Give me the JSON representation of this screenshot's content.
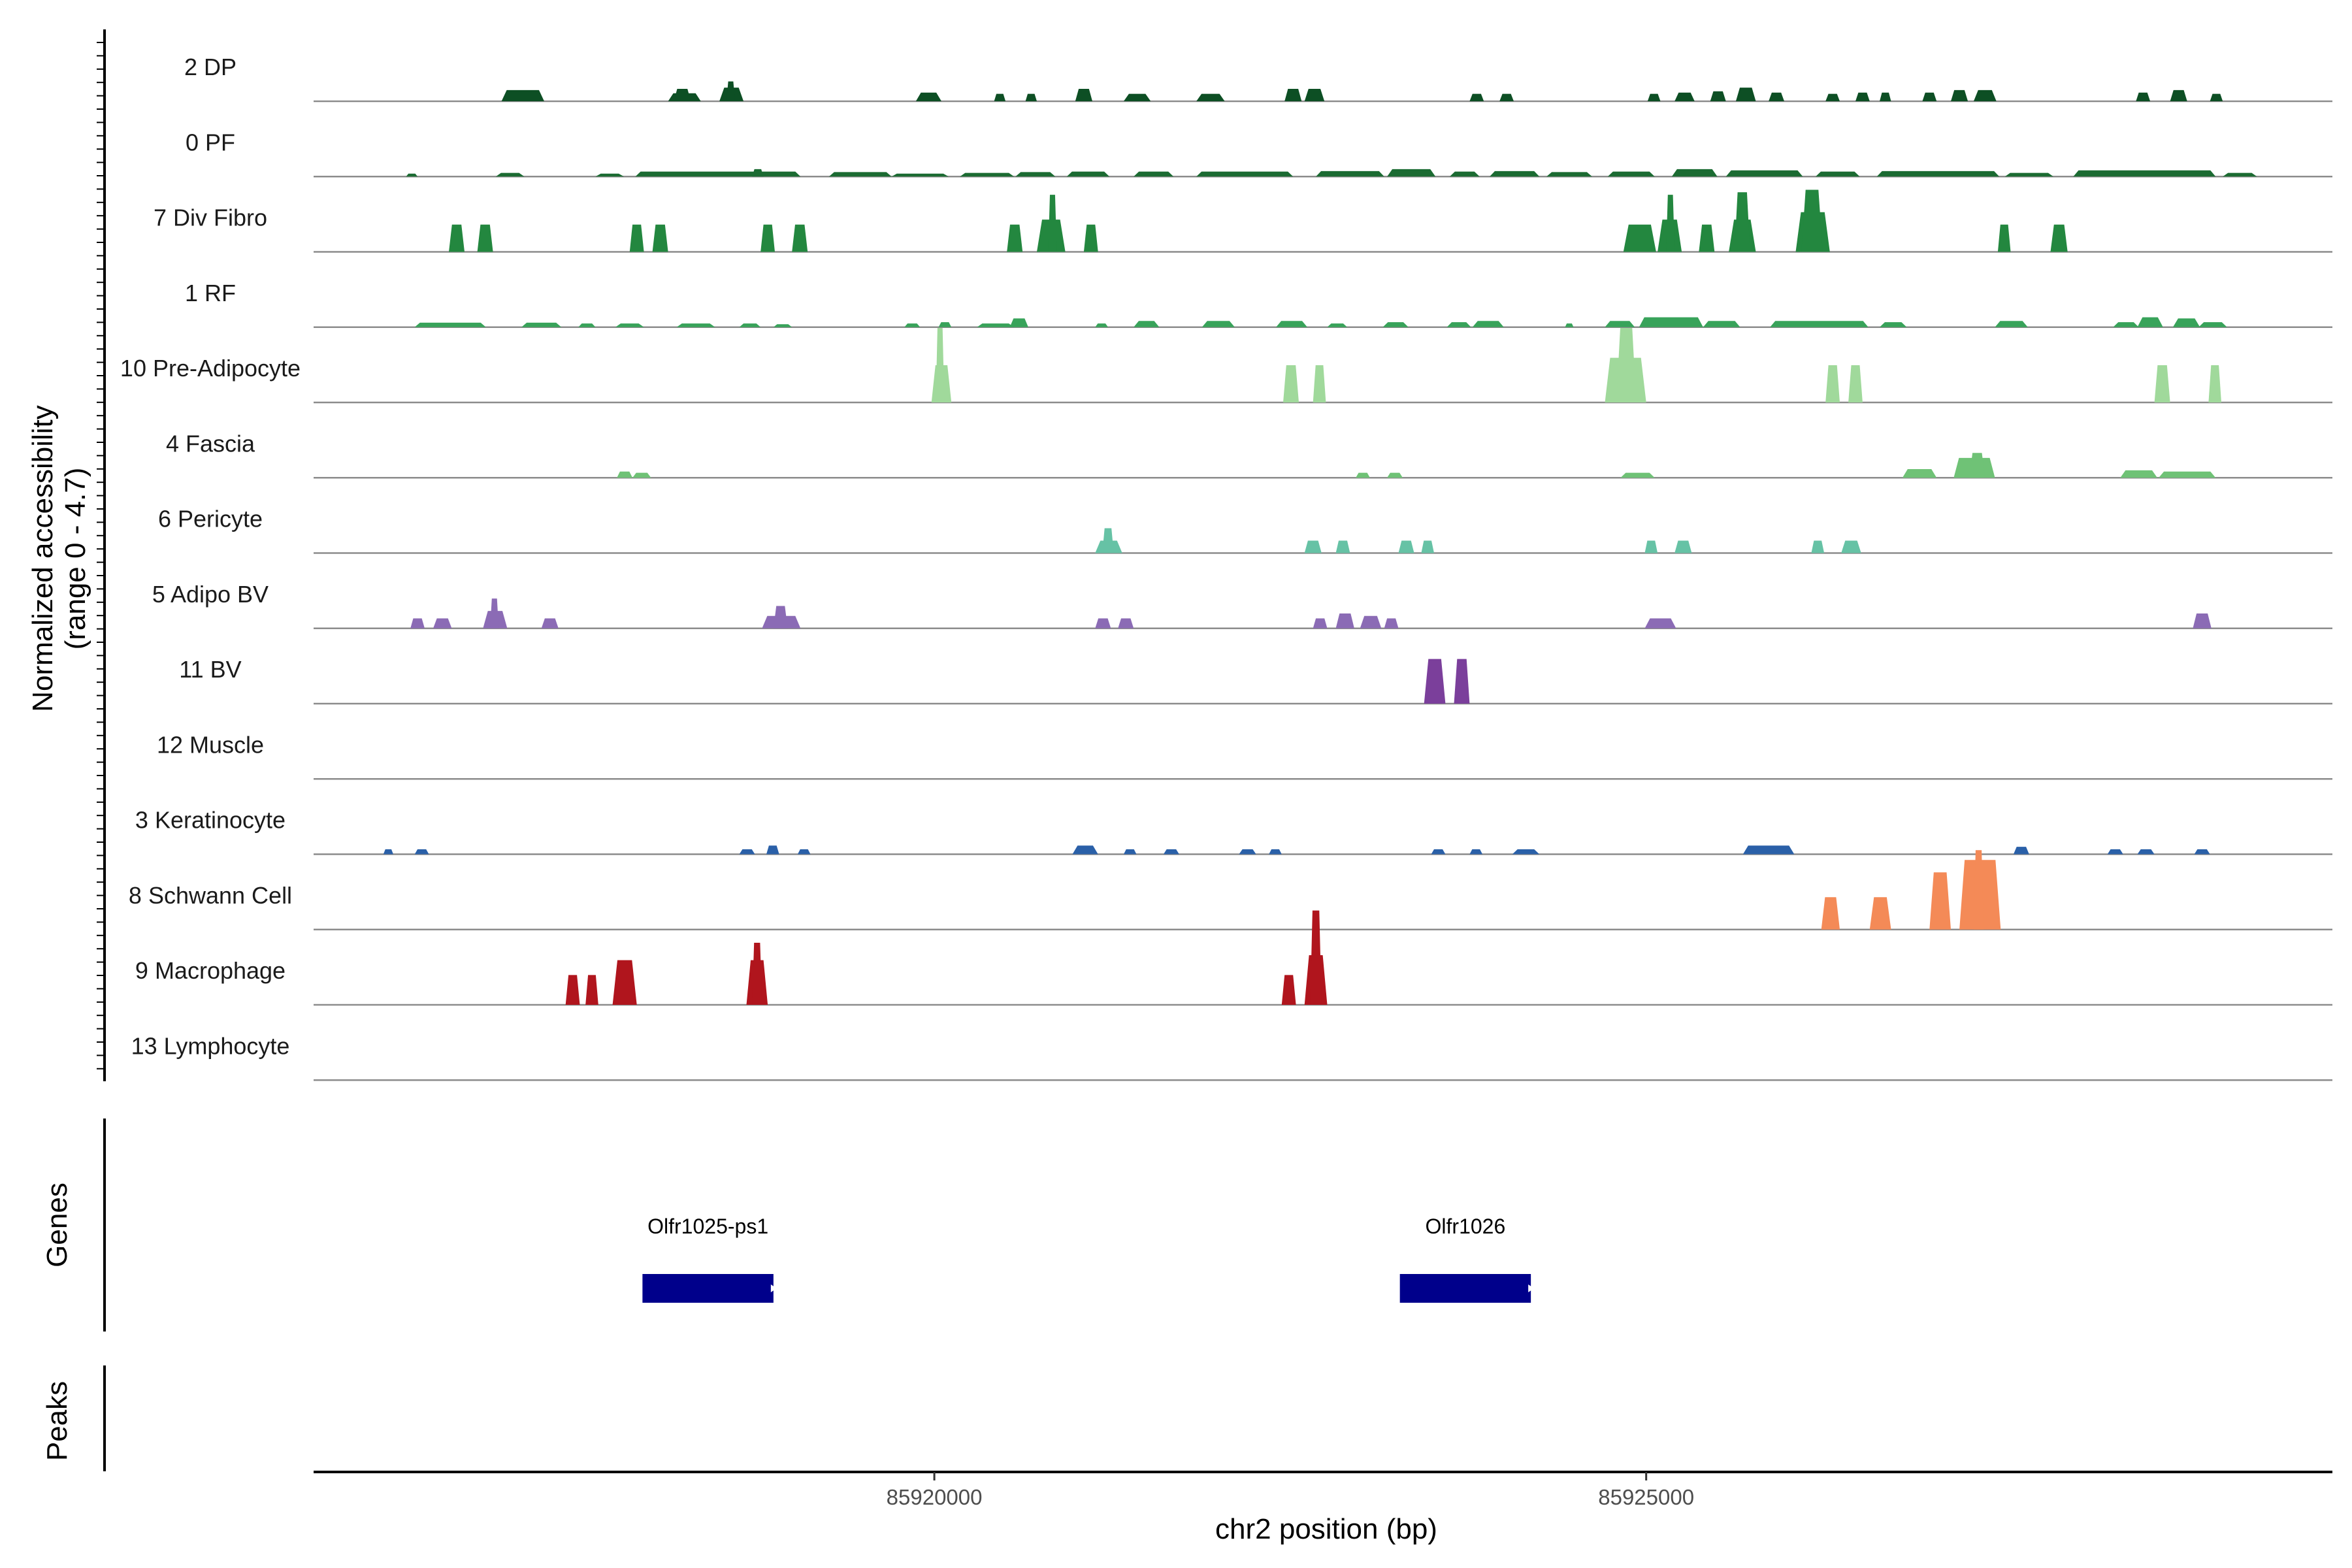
{
  "chart_data": {
    "type": "area",
    "ylabel": "Normalized accessibility\n(range 0 - 4.7)",
    "xlabel": "chr2 position (bp)",
    "xlim": [
      85915640,
      85929820
    ],
    "ylim": [
      0,
      4.7
    ],
    "x_ticks": [
      85920000,
      85925000
    ],
    "x_tick_labels": [
      "85920000",
      "85925000"
    ],
    "series": [
      {
        "name": "2 DP",
        "color": "#0d4f24",
        "regions": [
          [
            85916960,
            85917260,
            0.45
          ],
          [
            85918130,
            85918360,
            0.32
          ],
          [
            85918170,
            85918290,
            0.5
          ],
          [
            85918490,
            85918660,
            0.55
          ],
          [
            85918540,
            85918600,
            0.8
          ],
          [
            85919870,
            85920050,
            0.35
          ],
          [
            85920420,
            85920500,
            0.3
          ],
          [
            85920640,
            85920720,
            0.3
          ],
          [
            85920990,
            85921110,
            0.5
          ],
          [
            85921330,
            85921520,
            0.3
          ],
          [
            85921840,
            85922040,
            0.3
          ],
          [
            85922460,
            85922580,
            0.5
          ],
          [
            85922600,
            85922740,
            0.5
          ],
          [
            85923760,
            85923860,
            0.3
          ],
          [
            85923970,
            85924070,
            0.3
          ],
          [
            85925010,
            85925100,
            0.3
          ],
          [
            85925200,
            85925340,
            0.35
          ],
          [
            85925450,
            85925560,
            0.4
          ],
          [
            85925630,
            85925770,
            0.55
          ],
          [
            85925860,
            85925970,
            0.35
          ],
          [
            85926260,
            85926360,
            0.3
          ],
          [
            85926470,
            85926570,
            0.35
          ],
          [
            85926640,
            85926720,
            0.35
          ],
          [
            85926940,
            85927040,
            0.35
          ],
          [
            85927140,
            85927260,
            0.45
          ],
          [
            85927300,
            85927460,
            0.45
          ],
          [
            85928440,
            85928540,
            0.35
          ],
          [
            85928680,
            85928800,
            0.45
          ],
          [
            85928960,
            85929050,
            0.3
          ]
        ]
      },
      {
        "name": "0 PF",
        "color": "#1b6b32",
        "regions": [
          [
            85916290,
            85916370,
            0.12
          ],
          [
            85916920,
            85917120,
            0.15
          ],
          [
            85917620,
            85917820,
            0.12
          ],
          [
            85917900,
            85919060,
            0.2
          ],
          [
            85918720,
            85918800,
            0.3
          ],
          [
            85919260,
            85919700,
            0.18
          ],
          [
            85919700,
            85920100,
            0.12
          ],
          [
            85920180,
            85920560,
            0.15
          ],
          [
            85920570,
            85920850,
            0.18
          ],
          [
            85920930,
            85921230,
            0.2
          ],
          [
            85921400,
            85921680,
            0.2
          ],
          [
            85921840,
            85922520,
            0.2
          ],
          [
            85922680,
            85923160,
            0.22
          ],
          [
            85923180,
            85923520,
            0.3
          ],
          [
            85923620,
            85923830,
            0.2
          ],
          [
            85923900,
            85924250,
            0.22
          ],
          [
            85924300,
            85924620,
            0.18
          ],
          [
            85924730,
            85925060,
            0.2
          ],
          [
            85925180,
            85925500,
            0.3
          ],
          [
            85925560,
            85926100,
            0.25
          ],
          [
            85926190,
            85926500,
            0.2
          ],
          [
            85926620,
            85927480,
            0.22
          ],
          [
            85927520,
            85927860,
            0.15
          ],
          [
            85928000,
            85929000,
            0.25
          ],
          [
            85929050,
            85929290,
            0.15
          ]
        ]
      },
      {
        "name": "7 Div Fibro",
        "color": "#23873f",
        "regions": [
          [
            85916590,
            85916700,
            1.1
          ],
          [
            85916790,
            85916900,
            1.1
          ],
          [
            85917860,
            85917960,
            1.1
          ],
          [
            85918020,
            85918130,
            1.1
          ],
          [
            85918780,
            85918880,
            1.1
          ],
          [
            85919000,
            85919110,
            1.1
          ],
          [
            85920510,
            85920620,
            1.1
          ],
          [
            85920720,
            85920920,
            1.3
          ],
          [
            85920800,
            85920860,
            2.3
          ],
          [
            85921050,
            85921150,
            1.1
          ],
          [
            85924840,
            85925070,
            1.1
          ],
          [
            85925080,
            85925250,
            1.3
          ],
          [
            85925140,
            85925200,
            2.3
          ],
          [
            85925370,
            85925480,
            1.1
          ],
          [
            85925580,
            85925770,
            1.3
          ],
          [
            85925620,
            85925730,
            2.4
          ],
          [
            85926050,
            85926290,
            1.6
          ],
          [
            85926090,
            85926240,
            2.5
          ],
          [
            85927470,
            85927560,
            1.1
          ],
          [
            85927840,
            85927960,
            1.1
          ]
        ]
      },
      {
        "name": "1 RF",
        "color": "#38a35a",
        "regions": [
          [
            85916350,
            85916850,
            0.18
          ],
          [
            85917100,
            85917380,
            0.18
          ],
          [
            85917500,
            85917620,
            0.15
          ],
          [
            85917760,
            85917960,
            0.15
          ],
          [
            85918190,
            85918460,
            0.15
          ],
          [
            85918630,
            85918780,
            0.15
          ],
          [
            85918870,
            85919000,
            0.12
          ],
          [
            85919790,
            85919900,
            0.15
          ],
          [
            85920030,
            85920120,
            0.2
          ],
          [
            85920300,
            85920560,
            0.15
          ],
          [
            85920530,
            85920660,
            0.35
          ],
          [
            85921130,
            85921220,
            0.15
          ],
          [
            85921400,
            85921580,
            0.25
          ],
          [
            85921880,
            85922110,
            0.25
          ],
          [
            85922400,
            85922620,
            0.25
          ],
          [
            85922760,
            85922900,
            0.15
          ],
          [
            85923150,
            85923330,
            0.2
          ],
          [
            85923600,
            85923770,
            0.2
          ],
          [
            85923780,
            85924000,
            0.25
          ],
          [
            85924430,
            85924490,
            0.15
          ],
          [
            85924710,
            85924920,
            0.25
          ],
          [
            85924950,
            85925400,
            0.4
          ],
          [
            85925400,
            85925660,
            0.25
          ],
          [
            85925870,
            85926560,
            0.25
          ],
          [
            85926640,
            85926830,
            0.2
          ],
          [
            85927450,
            85927680,
            0.25
          ],
          [
            85928280,
            85928460,
            0.2
          ],
          [
            85928450,
            85928630,
            0.4
          ],
          [
            85928700,
            85928890,
            0.35
          ],
          [
            85928880,
            85929080,
            0.2
          ]
        ]
      },
      {
        "name": "10 Pre-Adipocyte",
        "color": "#a0d99b",
        "regions": [
          [
            85919980,
            85920120,
            1.5
          ],
          [
            85920010,
            85920070,
            3.0
          ],
          [
            85922450,
            85922560,
            1.5
          ],
          [
            85922660,
            85922750,
            1.5
          ],
          [
            85924710,
            85925000,
            1.8
          ],
          [
            85924790,
            85924930,
            3.0
          ],
          [
            85926260,
            85926360,
            1.5
          ],
          [
            85926420,
            85926520,
            1.5
          ],
          [
            85928570,
            85928680,
            1.5
          ],
          [
            85928950,
            85929040,
            1.5
          ]
        ]
      },
      {
        "name": "4 Fascia",
        "color": "#6fc276",
        "regions": [
          [
            85917770,
            85917880,
            0.25
          ],
          [
            85917880,
            85918010,
            0.2
          ],
          [
            85922960,
            85923060,
            0.2
          ],
          [
            85923180,
            85923290,
            0.2
          ],
          [
            85924820,
            85925060,
            0.2
          ],
          [
            85926800,
            85927040,
            0.35
          ],
          [
            85927160,
            85927450,
            0.8
          ],
          [
            85927270,
            85927380,
            1.0
          ],
          [
            85928330,
            85928590,
            0.3
          ],
          [
            85928600,
            85929000,
            0.25
          ]
        ]
      },
      {
        "name": "6 Pericyte",
        "color": "#66c2a5",
        "regions": [
          [
            85921130,
            85921320,
            0.5
          ],
          [
            85921180,
            85921260,
            1.0
          ],
          [
            85922600,
            85922720,
            0.5
          ],
          [
            85922820,
            85922920,
            0.5
          ],
          [
            85923260,
            85923370,
            0.5
          ],
          [
            85923420,
            85923510,
            0.5
          ],
          [
            85924990,
            85925080,
            0.5
          ],
          [
            85925200,
            85925320,
            0.5
          ],
          [
            85926160,
            85926250,
            0.5
          ],
          [
            85926370,
            85926510,
            0.5
          ]
        ]
      },
      {
        "name": "5 Adipo BV",
        "color": "#8b6bb5",
        "regions": [
          [
            85916320,
            85916420,
            0.4
          ],
          [
            85916480,
            85916610,
            0.4
          ],
          [
            85916830,
            85917000,
            0.7
          ],
          [
            85916880,
            85916940,
            1.2
          ],
          [
            85917240,
            85917360,
            0.4
          ],
          [
            85918790,
            85919060,
            0.5
          ],
          [
            85918870,
            85918970,
            0.9
          ],
          [
            85921130,
            85921240,
            0.4
          ],
          [
            85921290,
            85921400,
            0.4
          ],
          [
            85922660,
            85922760,
            0.4
          ],
          [
            85922820,
            85922950,
            0.6
          ],
          [
            85922990,
            85923140,
            0.5
          ],
          [
            85923160,
            85923260,
            0.4
          ],
          [
            85924990,
            85925210,
            0.4
          ],
          [
            85928840,
            85928970,
            0.6
          ]
        ]
      },
      {
        "name": "11 BV",
        "color": "#7b3f9b",
        "regions": [
          [
            85923440,
            85923590,
            1.8
          ],
          [
            85923650,
            85923760,
            1.8
          ]
        ]
      },
      {
        "name": "12 Muscle",
        "color": "#9e6bb5",
        "regions": []
      },
      {
        "name": "3 Keratinocyte",
        "color": "#2a60a8",
        "regions": [
          [
            85916130,
            85916200,
            0.2
          ],
          [
            85916350,
            85916450,
            0.2
          ],
          [
            85918630,
            85918740,
            0.2
          ],
          [
            85918820,
            85918910,
            0.35
          ],
          [
            85919040,
            85919130,
            0.2
          ],
          [
            85920970,
            85921150,
            0.35
          ],
          [
            85921330,
            85921420,
            0.2
          ],
          [
            85921610,
            85921720,
            0.2
          ],
          [
            85922140,
            85922260,
            0.2
          ],
          [
            85922350,
            85922440,
            0.2
          ],
          [
            85923490,
            85923590,
            0.2
          ],
          [
            85923760,
            85923850,
            0.2
          ],
          [
            85924060,
            85924250,
            0.2
          ],
          [
            85925680,
            85926040,
            0.35
          ],
          [
            85927580,
            85927690,
            0.3
          ],
          [
            85928240,
            85928350,
            0.2
          ],
          [
            85928450,
            85928570,
            0.2
          ],
          [
            85928850,
            85928960,
            0.2
          ]
        ]
      },
      {
        "name": "8 Schwann Cell",
        "color": "#f48a57",
        "regions": [
          [
            85926230,
            85926360,
            1.3
          ],
          [
            85926570,
            85926720,
            1.3
          ],
          [
            85926990,
            85927140,
            2.3
          ],
          [
            85927200,
            85927490,
            2.8
          ],
          [
            85927300,
            85927370,
            3.2
          ]
        ]
      },
      {
        "name": "9 Macrophage",
        "color": "#b0151d",
        "regions": [
          [
            85917410,
            85917510,
            1.2
          ],
          [
            85917550,
            85917640,
            1.2
          ],
          [
            85917740,
            85917910,
            1.8
          ],
          [
            85918680,
            85918830,
            1.8
          ],
          [
            85918720,
            85918790,
            2.5
          ],
          [
            85922440,
            85922540,
            1.2
          ],
          [
            85922600,
            85922760,
            2.0
          ],
          [
            85922640,
            85922720,
            3.8
          ]
        ]
      },
      {
        "name": "13 Lymphocyte",
        "color": "#000000",
        "regions": []
      }
    ],
    "genes": [
      {
        "name": "Olfr1025-ps1",
        "start": 85917950,
        "end": 85918870,
        "color": "#00008b"
      },
      {
        "name": "Olfr1026",
        "start": 85923270,
        "end": 85924190,
        "color": "#00008b"
      }
    ],
    "panel_labels": {
      "genes": "Genes",
      "peaks": "Peaks"
    }
  }
}
